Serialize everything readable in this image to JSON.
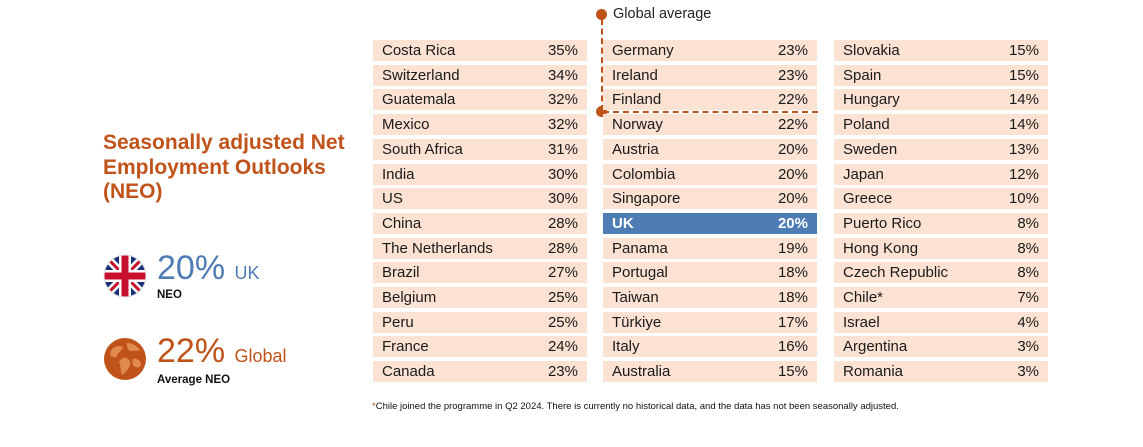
{
  "title": "Seasonally adjusted Net Employment Outlooks (NEO)",
  "uk_stat": {
    "value": "20%",
    "label": "UK",
    "sub": "NEO"
  },
  "global_stat": {
    "value": "22%",
    "label": "Global",
    "sub": "Average NEO"
  },
  "global_average_label": "Global average",
  "footnote": {
    "star": "*",
    "text": "Chile joined the programme in Q2 2024. There is currently no historical data, and the data has not been seasonally adjusted."
  },
  "colors": {
    "accent": "#C0531A",
    "uk_blue": "#4E7DB5",
    "row_bg": "#FBE2D3"
  },
  "icons": {
    "uk": "uk-flag-icon",
    "global": "globe-icon"
  },
  "chart_data": {
    "type": "table",
    "unit": "%",
    "highlight": "UK",
    "global_average": 22,
    "columns": [
      [
        {
          "country": "Costa Rica",
          "value": "35%"
        },
        {
          "country": "Switzerland",
          "value": "34%"
        },
        {
          "country": "Guatemala",
          "value": "32%"
        },
        {
          "country": "Mexico",
          "value": "32%"
        },
        {
          "country": "South Africa",
          "value": "31%"
        },
        {
          "country": "India",
          "value": "30%"
        },
        {
          "country": "US",
          "value": "30%"
        },
        {
          "country": "China",
          "value": "28%"
        },
        {
          "country": "The Netherlands",
          "value": "28%"
        },
        {
          "country": "Brazil",
          "value": "27%"
        },
        {
          "country": "Belgium",
          "value": "25%"
        },
        {
          "country": "Peru",
          "value": "25%"
        },
        {
          "country": "France",
          "value": "24%"
        },
        {
          "country": "Canada",
          "value": "23%"
        }
      ],
      [
        {
          "country": "Germany",
          "value": "23%"
        },
        {
          "country": "Ireland",
          "value": "23%"
        },
        {
          "country": "Finland",
          "value": "22%"
        },
        {
          "country": "Norway",
          "value": "22%"
        },
        {
          "country": "Austria",
          "value": "20%"
        },
        {
          "country": "Colombia",
          "value": "20%"
        },
        {
          "country": "Singapore",
          "value": "20%"
        },
        {
          "country": "UK",
          "value": "20%"
        },
        {
          "country": "Panama",
          "value": "19%"
        },
        {
          "country": "Portugal",
          "value": "18%"
        },
        {
          "country": "Taiwan",
          "value": "18%"
        },
        {
          "country": "Türkiye",
          "value": "17%"
        },
        {
          "country": "Italy",
          "value": "16%"
        },
        {
          "country": "Australia",
          "value": "15%"
        }
      ],
      [
        {
          "country": "Slovakia",
          "value": "15%"
        },
        {
          "country": "Spain",
          "value": "15%"
        },
        {
          "country": "Hungary",
          "value": "14%"
        },
        {
          "country": "Poland",
          "value": "14%"
        },
        {
          "country": "Sweden",
          "value": "13%"
        },
        {
          "country": "Japan",
          "value": "12%"
        },
        {
          "country": "Greece",
          "value": "10%"
        },
        {
          "country": "Puerto Rico",
          "value": "8%"
        },
        {
          "country": "Hong Kong",
          "value": "8%"
        },
        {
          "country": "Czech Republic",
          "value": "8%"
        },
        {
          "country": "Chile*",
          "value": "7%"
        },
        {
          "country": "Israel",
          "value": "4%"
        },
        {
          "country": "Argentina",
          "value": "3%"
        },
        {
          "country": "Romania",
          "value": "3%"
        }
      ]
    ]
  }
}
